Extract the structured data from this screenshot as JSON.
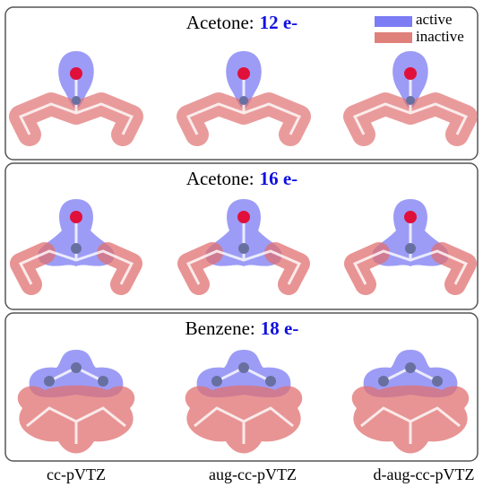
{
  "legend": {
    "active": "active",
    "inactive": "inactive"
  },
  "panels": [
    {
      "molecule": "Acetone:",
      "electrons": "12 e-"
    },
    {
      "molecule": "Acetone:",
      "electrons": "16 e-"
    },
    {
      "molecule": "Benzene:",
      "electrons": "18 e-"
    }
  ],
  "basis_sets": [
    "cc-pVTZ",
    "aug-cc-pVTZ",
    "d-aug-cc-pVTZ"
  ]
}
